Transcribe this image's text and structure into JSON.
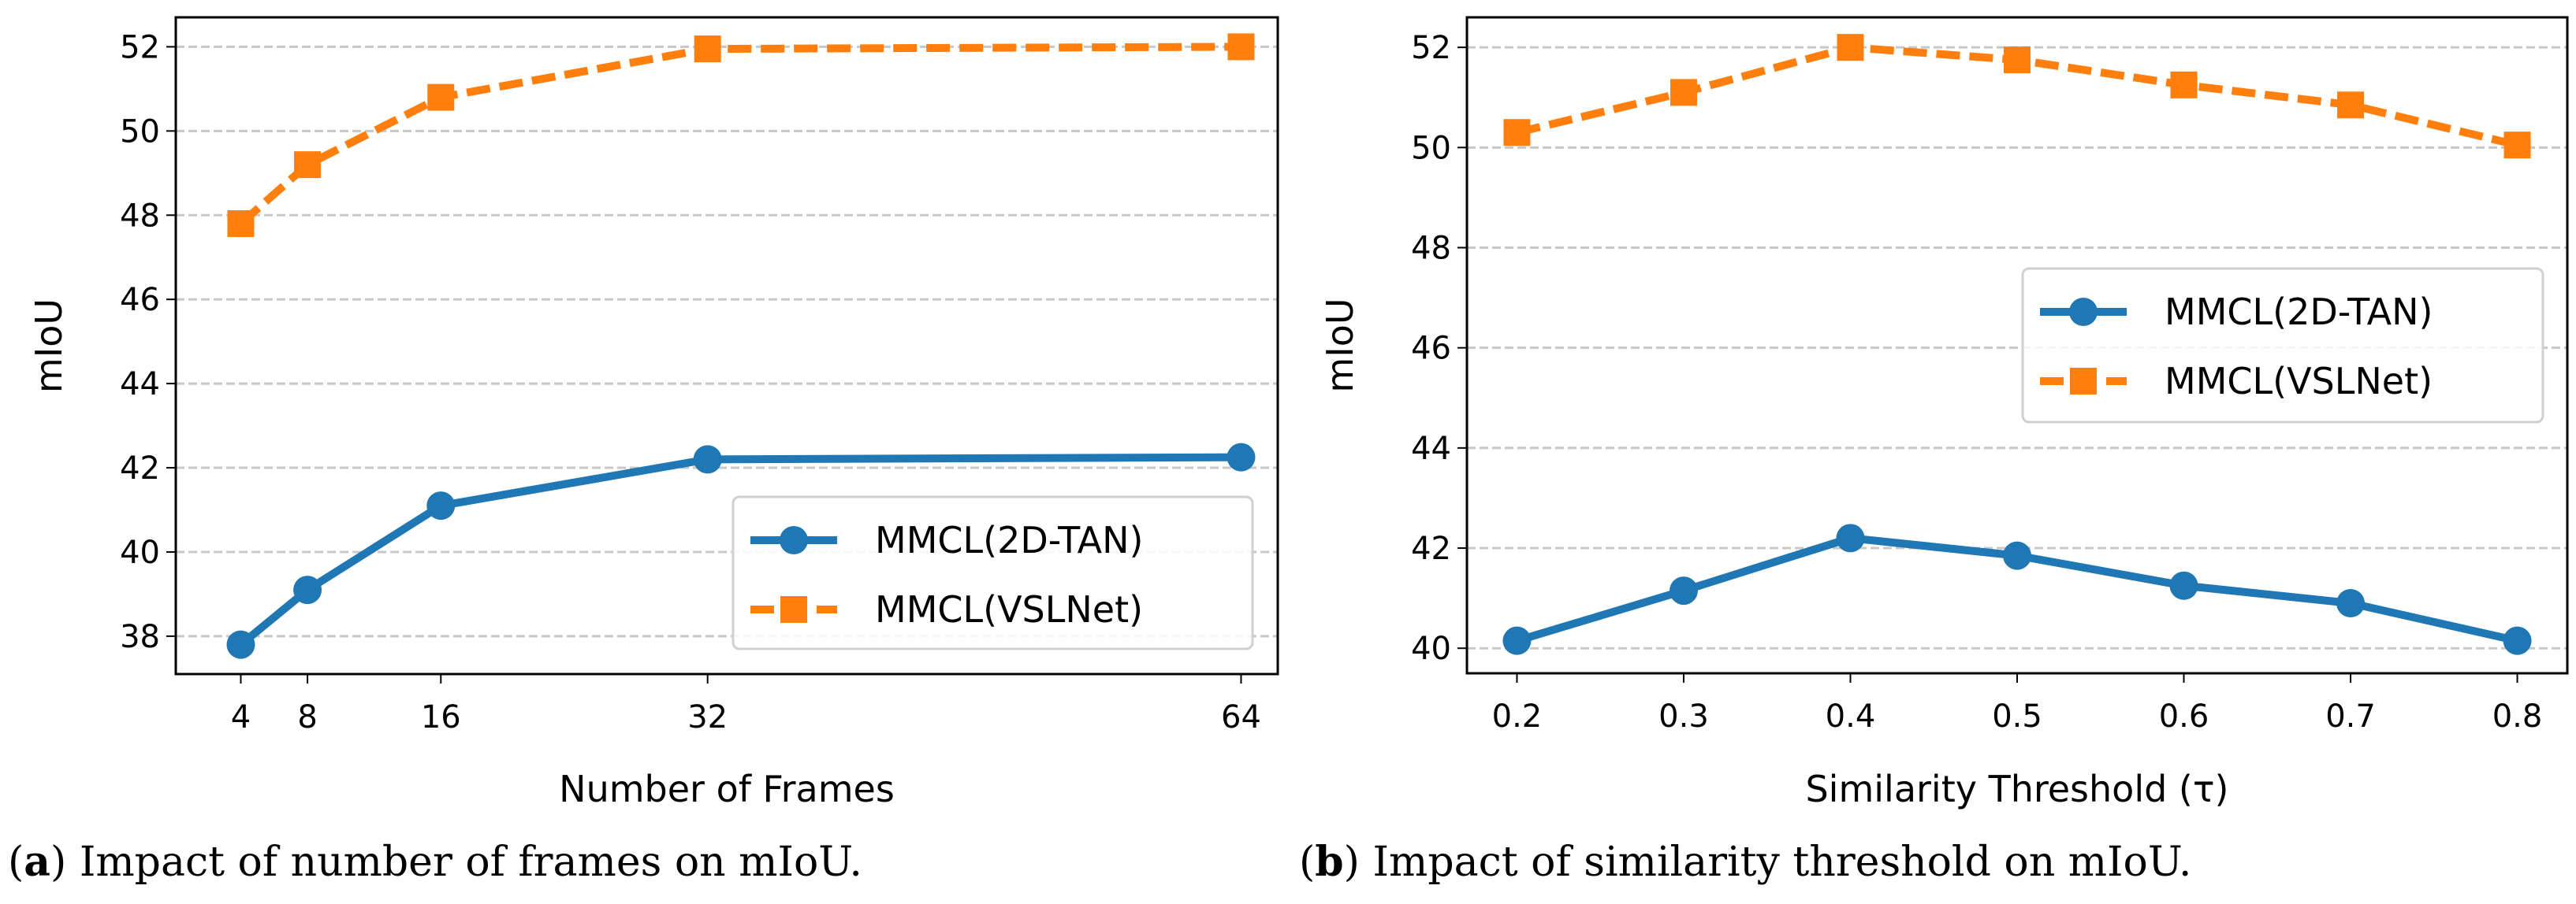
{
  "chart_data": [
    {
      "type": "line",
      "xlabel": "Number of Frames",
      "ylabel": "mIoU",
      "x": [
        4,
        8,
        16,
        32,
        64
      ],
      "x_tick_labels": [
        "4",
        "8",
        "16",
        "32",
        "64"
      ],
      "y_ticks": [
        38,
        40,
        42,
        44,
        46,
        48,
        50,
        52
      ],
      "y_tick_labels": [
        "38",
        "40",
        "42",
        "44",
        "46",
        "48",
        "50",
        "52"
      ],
      "xlim": [
        0.1,
        66.2
      ],
      "ylim": [
        37.1,
        52.7
      ],
      "grid": "y dashed",
      "legend_position": "lower-right",
      "series": [
        {
          "name": "MMCL(2D-TAN)",
          "values": [
            37.8,
            39.1,
            41.1,
            42.2,
            42.25
          ],
          "color": "#1f77b4",
          "style": "solid",
          "marker": "circle"
        },
        {
          "name": "MMCL(VSLNet)",
          "values": [
            47.8,
            49.2,
            50.8,
            51.95,
            52.0
          ],
          "color": "#ff7f0e",
          "style": "dashed",
          "marker": "square"
        }
      ],
      "caption_label": "(a)",
      "caption_letter": "a",
      "caption": "Impact of number of frames on mIoU."
    },
    {
      "type": "line",
      "xlabel": "Similarity Threshold (τ)",
      "ylabel": "mIoU",
      "x": [
        0.2,
        0.3,
        0.4,
        0.5,
        0.6,
        0.7,
        0.8
      ],
      "x_tick_labels": [
        "0.2",
        "0.3",
        "0.4",
        "0.5",
        "0.6",
        "0.7",
        "0.8"
      ],
      "y_ticks": [
        40,
        42,
        44,
        46,
        48,
        50,
        52
      ],
      "y_tick_labels": [
        "40",
        "42",
        "44",
        "46",
        "48",
        "50",
        "52"
      ],
      "xlim": [
        0.17,
        0.83
      ],
      "ylim": [
        39.5,
        52.6
      ],
      "grid": "y dashed",
      "legend_position": "center-right",
      "series": [
        {
          "name": "MMCL(2D-TAN)",
          "values": [
            40.15,
            41.15,
            42.2,
            41.85,
            41.25,
            40.9,
            40.15
          ],
          "color": "#1f77b4",
          "style": "solid",
          "marker": "circle"
        },
        {
          "name": "MMCL(VSLNet)",
          "values": [
            50.3,
            51.1,
            52.0,
            51.75,
            51.25,
            50.85,
            50.05
          ],
          "color": "#ff7f0e",
          "style": "dashed",
          "marker": "square"
        }
      ],
      "caption_label": "(b)",
      "caption_letter": "b",
      "caption": "Impact of similarity threshold on mIoU."
    }
  ]
}
